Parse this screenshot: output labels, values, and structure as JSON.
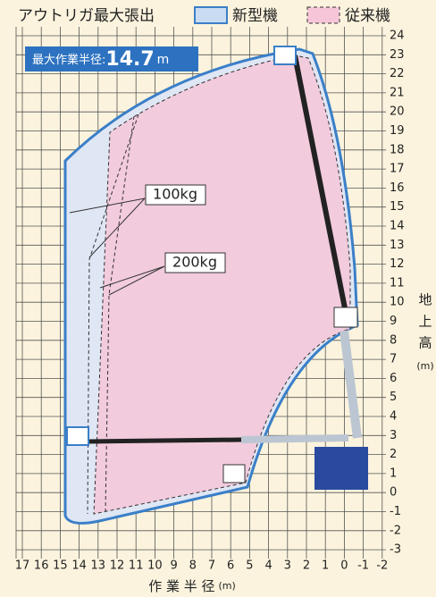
{
  "header": {
    "title": "アウトリガ最大張出",
    "legend": [
      "新型機",
      "従来機"
    ]
  },
  "badge": {
    "label": "最大作業半径:",
    "value": "14.7",
    "unit": "m"
  },
  "annotations": [
    "100kg",
    "200kg"
  ],
  "x_ticks": [
    "17",
    "16",
    "15",
    "14",
    "13",
    "12",
    "11",
    "10",
    "9",
    "8",
    "7",
    "6",
    "5",
    "4",
    "3",
    "2",
    "1",
    "0",
    "-1",
    "-2"
  ],
  "y_ticks": [
    "24",
    "23",
    "22",
    "21",
    "20",
    "19",
    "18",
    "17",
    "16",
    "15",
    "14",
    "13",
    "12",
    "11",
    "10",
    "9",
    "8",
    "7",
    "6",
    "5",
    "4",
    "3",
    "2",
    "1",
    "0",
    "-1",
    "-2",
    "-3"
  ],
  "x_axis_title": "作 業 半 径",
  "x_axis_unit": "(m)",
  "y_axis_title": [
    "地",
    "上",
    "高"
  ],
  "y_axis_unit": "(m)"
}
